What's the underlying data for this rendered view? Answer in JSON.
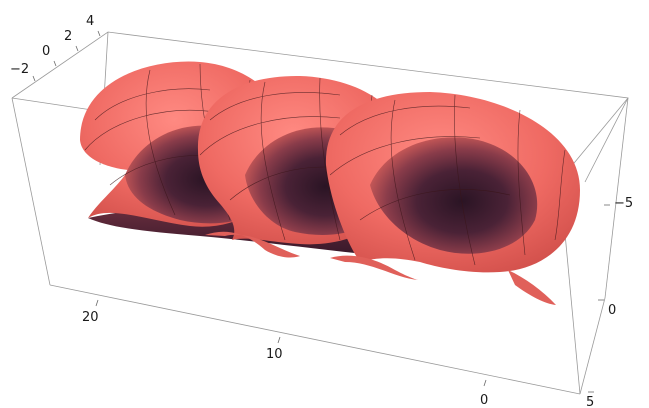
{
  "plot": {
    "type": "3d-surface",
    "surface_color": "#ef6a63",
    "surface_dark": "#3a1c2e",
    "box_color": "#9a9a9a",
    "axes": {
      "top_left": {
        "ticks": [
          "−2",
          "0",
          "2",
          "4"
        ]
      },
      "front_bottom": {
        "ticks": [
          "20",
          "10",
          "0"
        ]
      },
      "right": {
        "ticks": [
          "−5",
          "0",
          "5"
        ]
      }
    },
    "coils": 3
  }
}
